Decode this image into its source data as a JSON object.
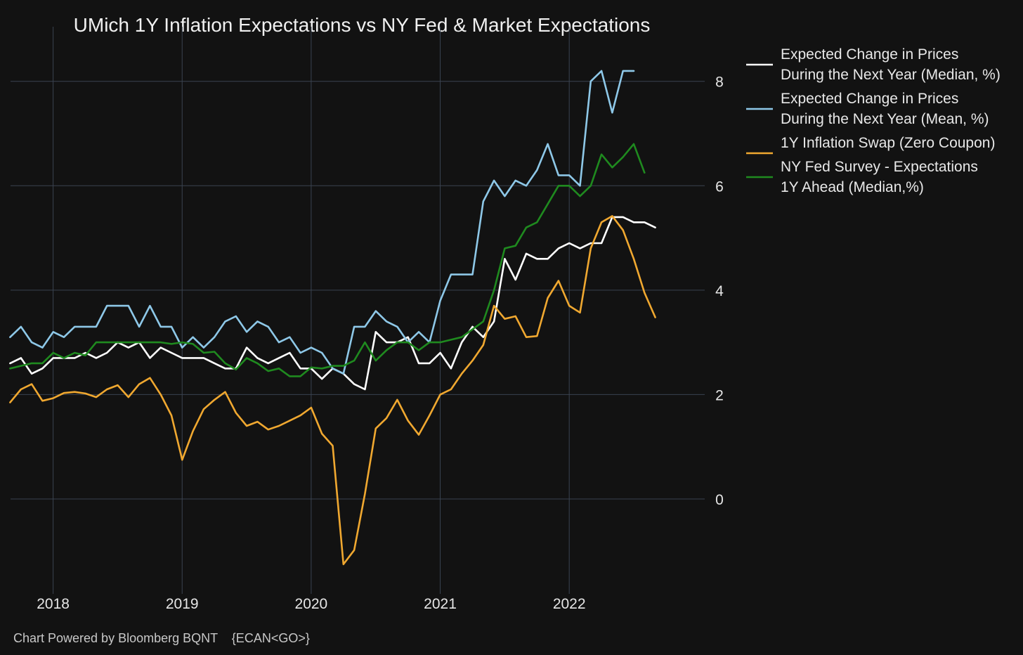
{
  "chart_data": {
    "type": "line",
    "title": "UMich 1Y Inflation Expectations vs NY Fed & Market Expectations",
    "footer": "Chart Powered by Bloomberg BQNT    {ECAN<GO>}",
    "xlabel": "",
    "ylabel": "",
    "grid": true,
    "legend_position": "top-right",
    "x_ticks": [
      {
        "label": "2018",
        "value": 2018.0
      },
      {
        "label": "2019",
        "value": 2019.0
      },
      {
        "label": "2020",
        "value": 2020.0
      },
      {
        "label": "2021",
        "value": 2021.0
      },
      {
        "label": "2022",
        "value": 2022.0
      }
    ],
    "y_ticks": [
      {
        "label": "0",
        "value": 0
      },
      {
        "label": "2",
        "value": 2
      },
      {
        "label": "4",
        "value": 4
      },
      {
        "label": "6",
        "value": 6
      },
      {
        "label": "8",
        "value": 8
      }
    ],
    "xlim": [
      2017.67,
      2023.05
    ],
    "ylim": [
      -1.75,
      8.75
    ],
    "x_start": 2017.667,
    "x_step": 0.08333,
    "series": [
      {
        "name": "Expected Change in Prices During the Next Year (Median, %)",
        "legend_lines": [
          "Expected Change in Prices",
          "During the Next Year (Median, %)"
        ],
        "color": "#ffffff",
        "values": [
          2.6,
          2.7,
          2.4,
          2.5,
          2.7,
          2.7,
          2.7,
          2.8,
          2.7,
          2.8,
          3.0,
          2.9,
          3.0,
          2.7,
          2.9,
          2.8,
          2.7,
          2.7,
          2.7,
          2.6,
          2.5,
          2.5,
          2.9,
          2.7,
          2.6,
          2.7,
          2.8,
          2.5,
          2.5,
          2.3,
          2.5,
          2.4,
          2.2,
          2.1,
          3.2,
          3.0,
          3.0,
          3.1,
          2.6,
          2.6,
          2.8,
          2.5,
          3.0,
          3.3,
          3.1,
          3.4,
          4.6,
          4.2,
          4.7,
          4.6,
          4.6,
          4.8,
          4.9,
          4.8,
          4.9,
          4.9,
          5.4,
          5.4,
          5.3,
          5.3,
          5.2
        ]
      },
      {
        "name": "Expected Change in Prices During the Next Year (Mean, %)",
        "legend_lines": [
          "Expected Change in Prices",
          "During the Next Year (Mean, %)"
        ],
        "color": "#8ec8e8",
        "values": [
          3.1,
          3.3,
          3.0,
          2.9,
          3.2,
          3.1,
          3.3,
          3.3,
          3.3,
          3.7,
          3.7,
          3.7,
          3.3,
          3.7,
          3.3,
          3.3,
          2.9,
          3.1,
          2.9,
          3.1,
          3.4,
          3.5,
          3.2,
          3.4,
          3.3,
          3.0,
          3.1,
          2.8,
          2.9,
          2.8,
          2.5,
          2.4,
          3.3,
          3.3,
          3.6,
          3.4,
          3.3,
          3.0,
          3.2,
          3.0,
          3.8,
          4.3,
          4.3,
          4.3,
          5.7,
          6.1,
          5.8,
          6.1,
          6.0,
          6.3,
          6.8,
          6.2,
          6.2,
          6.0,
          8.0,
          8.2,
          7.4,
          8.2,
          8.2
        ]
      },
      {
        "name": "1Y Inflation Swap (Zero Coupon)",
        "legend_lines": [
          "1Y Inflation Swap (Zero Coupon)"
        ],
        "color": "#f0a830",
        "values": [
          1.85,
          2.1,
          2.2,
          1.88,
          1.93,
          2.03,
          2.05,
          2.02,
          1.95,
          2.1,
          2.18,
          1.95,
          2.2,
          2.32,
          2.0,
          1.6,
          0.75,
          1.3,
          1.72,
          1.9,
          2.05,
          1.65,
          1.4,
          1.48,
          1.33,
          1.4,
          1.5,
          1.6,
          1.75,
          1.25,
          1.02,
          -1.25,
          -0.98,
          0.1,
          1.35,
          1.55,
          1.9,
          1.5,
          1.23,
          1.6,
          2.0,
          2.1,
          2.4,
          2.65,
          2.95,
          3.7,
          3.45,
          3.5,
          3.1,
          3.12,
          3.85,
          4.18,
          3.7,
          3.57,
          4.8,
          5.3,
          5.42,
          5.15,
          4.6,
          3.95,
          3.48
        ]
      },
      {
        "name": "NY Fed Survey - Expectations 1Y Ahead (Median,%)",
        "legend_lines": [
          "NY Fed Survey - Expectations",
          "1Y Ahead (Median,%)"
        ],
        "color": "#1f8a1f",
        "values": [
          2.5,
          2.55,
          2.6,
          2.6,
          2.8,
          2.7,
          2.8,
          2.75,
          3.0,
          3.0,
          3.0,
          3.0,
          3.0,
          3.0,
          3.0,
          2.97,
          3.0,
          2.97,
          2.8,
          2.82,
          2.6,
          2.48,
          2.7,
          2.6,
          2.45,
          2.5,
          2.35,
          2.35,
          2.52,
          2.5,
          2.55,
          2.55,
          2.65,
          3.0,
          2.65,
          2.85,
          3.0,
          3.0,
          2.85,
          3.0,
          3.0,
          3.05,
          3.1,
          3.25,
          3.4,
          4.0,
          4.8,
          4.85,
          5.2,
          5.3,
          5.65,
          6.0,
          6.0,
          5.8,
          6.0,
          6.6,
          6.35,
          6.55,
          6.8,
          6.25
        ]
      }
    ]
  }
}
